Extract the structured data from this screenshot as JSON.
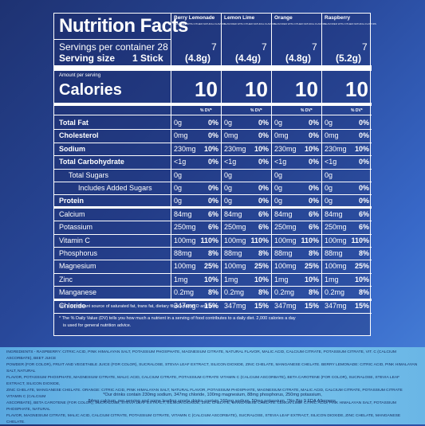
{
  "title": "Nutrition Facts",
  "columns": [
    {
      "flavor": "Berry Lemonade",
      "sub": "FLAVORED WITH OTHER NATURAL FLAVORS",
      "servings": "7",
      "size": "(4.8g)"
    },
    {
      "flavor": "Lemon Lime",
      "sub": "FLAVORED WITH OTHER NATURAL FLAVORS",
      "servings": "7",
      "size": "(4.4g)"
    },
    {
      "flavor": "Orange",
      "sub": "FLAVORED WITH OTHER NATURAL FLAVORS",
      "servings": "7",
      "size": "(4.8g)"
    },
    {
      "flavor": "Raspberry",
      "sub": "FLAVORED WITH OTHER NATURAL FLAVORS",
      "servings": "7",
      "size": "(5.2g)"
    }
  ],
  "servings_label": "Servings per container 28",
  "serving_size_label": "Serving size",
  "serving_size_value": "1 Stick",
  "amount_per_serving": "Amount per serving",
  "calories_label": "Calories",
  "calories": [
    "10",
    "10",
    "10",
    "10"
  ],
  "dv_header": "% DV*",
  "nutrients": [
    {
      "name": "Total Fat",
      "bold": true,
      "indent": 0,
      "values": [
        [
          "0g",
          "0%"
        ],
        [
          "0g",
          "0%"
        ],
        [
          "0g",
          "0%"
        ],
        [
          "0g",
          "0%"
        ]
      ]
    },
    {
      "name": "Cholesterol",
      "bold": true,
      "indent": 0,
      "values": [
        [
          "0mg",
          "0%"
        ],
        [
          "0mg",
          "0%"
        ],
        [
          "0mg",
          "0%"
        ],
        [
          "0mg",
          "0%"
        ]
      ]
    },
    {
      "name": "Sodium",
      "bold": true,
      "indent": 0,
      "values": [
        [
          "230mg",
          "10%"
        ],
        [
          "230mg",
          "10%"
        ],
        [
          "230mg",
          "10%"
        ],
        [
          "230mg",
          "10%"
        ]
      ]
    },
    {
      "name": "Total Carbohydrate",
      "bold": true,
      "indent": 0,
      "values": [
        [
          "<1g",
          "0%"
        ],
        [
          "<1g",
          "0%"
        ],
        [
          "<1g",
          "0%"
        ],
        [
          "<1g",
          "0%"
        ]
      ]
    },
    {
      "name": "Total Sugars",
      "bold": false,
      "indent": 1,
      "values": [
        [
          "0g",
          ""
        ],
        [
          "0g",
          ""
        ],
        [
          "0g",
          ""
        ],
        [
          "0g",
          ""
        ]
      ]
    },
    {
      "name": "Includes Added Sugars",
      "bold": false,
      "indent": 2,
      "values": [
        [
          "0g",
          "0%"
        ],
        [
          "0g",
          "0%"
        ],
        [
          "0g",
          "0%"
        ],
        [
          "0g",
          "0%"
        ]
      ]
    },
    {
      "name": "Protein",
      "bold": true,
      "indent": 0,
      "values": [
        [
          "0g",
          "0%"
        ],
        [
          "0g",
          "0%"
        ],
        [
          "0g",
          "0%"
        ],
        [
          "0g",
          "0%"
        ]
      ]
    },
    {
      "name": "Calcium",
      "bold": false,
      "indent": 0,
      "values": [
        [
          "84mg",
          "6%"
        ],
        [
          "84mg",
          "6%"
        ],
        [
          "84mg",
          "6%"
        ],
        [
          "84mg",
          "6%"
        ]
      ]
    },
    {
      "name": "Potassium",
      "bold": false,
      "indent": 0,
      "values": [
        [
          "250mg",
          "6%"
        ],
        [
          "250mg",
          "6%"
        ],
        [
          "250mg",
          "6%"
        ],
        [
          "250mg",
          "6%"
        ]
      ]
    },
    {
      "name": "Vitamin C",
      "bold": false,
      "indent": 0,
      "values": [
        [
          "100mg",
          "110%"
        ],
        [
          "100mg",
          "110%"
        ],
        [
          "100mg",
          "110%"
        ],
        [
          "100mg",
          "110%"
        ]
      ]
    },
    {
      "name": "Phosphorus",
      "bold": false,
      "indent": 0,
      "values": [
        [
          "88mg",
          "8%"
        ],
        [
          "88mg",
          "8%"
        ],
        [
          "88mg",
          "8%"
        ],
        [
          "88mg",
          "8%"
        ]
      ]
    },
    {
      "name": "Magnesium",
      "bold": false,
      "indent": 0,
      "values": [
        [
          "100mg",
          "25%"
        ],
        [
          "100mg",
          "25%"
        ],
        [
          "100mg",
          "25%"
        ],
        [
          "100mg",
          "25%"
        ]
      ]
    },
    {
      "name": "Zinc",
      "bold": false,
      "indent": 0,
      "values": [
        [
          "1mg",
          "10%"
        ],
        [
          "1mg",
          "10%"
        ],
        [
          "1mg",
          "10%"
        ],
        [
          "1mg",
          "10%"
        ]
      ]
    },
    {
      "name": "Manganese",
      "bold": false,
      "indent": 0,
      "values": [
        [
          "0.2mg",
          "8%"
        ],
        [
          "0.2mg",
          "8%"
        ],
        [
          "0.2mg",
          "8%"
        ],
        [
          "0.2mg",
          "8%"
        ]
      ]
    },
    {
      "name": "Chloride",
      "bold": false,
      "indent": 0,
      "values": [
        [
          "347mg",
          "15%"
        ],
        [
          "347mg",
          "15%"
        ],
        [
          "347mg",
          "15%"
        ],
        [
          "347mg",
          "15%"
        ]
      ]
    }
  ],
  "not_significant": "Not a significant source of saturated fat, trans fat, dietary fiber, vitamin D and iron.",
  "footnote_line1": "* The % Daily Value (DV) tells you how much a nutrient in a serving of food contributes to a daily diet. 2,000 calories a day",
  "footnote_line2": "is used for general nutrition advice.",
  "ingredients": {
    "lines": [
      "INGREDIENTS - RASPBERRY: CITRIC ACID, PINK HIMALAYAN SALT, POTASSIUM PHOSPHATE, MAGNESIUM CITRATE, NATURAL FLAVOR, MALIC ACID, CALCIUM CITRATE, POTASSIUM CITRATE, VIT. C (CALCIUM ASCORBATE), BEET JUICE",
      "POWDER (FOR COLOR), FRUIT AND VEGETABLE JUICE (FOR COLOR), SUCRALOSE, STEVIA LEAF EXTRACT, SILICON DIOXIDE, ZINC CHELATE, MANGANESE CHELATE. BERRY LEMONADE: CITRIC ACID, PINK HIMALAYAN SALT, NATURAL",
      "FLAVOR, POTASSIUM PHOSPHATE, MAGNESIUM CITRATE, MALIC ACID, CALCIUM CITRATE, POTASSIUM CITRATE VITAMIN C (CALCIUM ASCORBATE), BETA CAROTENE (FOR COLOR), SUCRALOSE, STEVIA LEAF EXTRACT, SILICON DIOXIDE,",
      "ZINC CHELATE, MANGANESE CHELATE. ORANGE: CITRIC ACID, PINK HIMALAYAN SALT, NATURAL FLAVOR, POTASSIUM PHOSPHATE, MAGNESIUM CITRATE, MALIC ACID, CALCIUM CITRATE, POTASSIUM CITRATE VITAMIN C (CALCIUM",
      "ASCORBATE), BETA CAROTENE (FOR COLOR), SUCRALOSE, STEVIA LEAF EXTRACT, SILICON DIOXIDE, ZINC CHELATE, MANGANESE CHELATE. LEMON LIME: CITRIC ACID, PINK HIMALAYAN SALT, POTASSIUM PHOSPHATE, NATURAL",
      "FLAVOR, MAGNESIUM CITRATE, MALIC ACID, CALCIUM CITRATE, POTASSIUM CITRATE, VITAMIN C (CALCIUM ASCORBATE), SUCRALOSE, STEVIA LEAF EXTRACT, SILICON DIOXIDE, ZINC CHELATE, MANGANESE CHELATE."
    ],
    "note1": "*Our drinks contain 230mg sodium, 347mg chloride, 100mg magnesium, 88mg phosphorus, 250mg potassium,",
    "note2": "84mg calcium, per serving and some leading sports drinks contain 160mg sodium, 50mg potassium. ^No Big 9 FDA Allergens."
  },
  "colors": {
    "background": "#28489a",
    "panel_border": "#ffffff",
    "ingredients_band": "#7cc8ee",
    "ingredients_text": "#14285a"
  }
}
